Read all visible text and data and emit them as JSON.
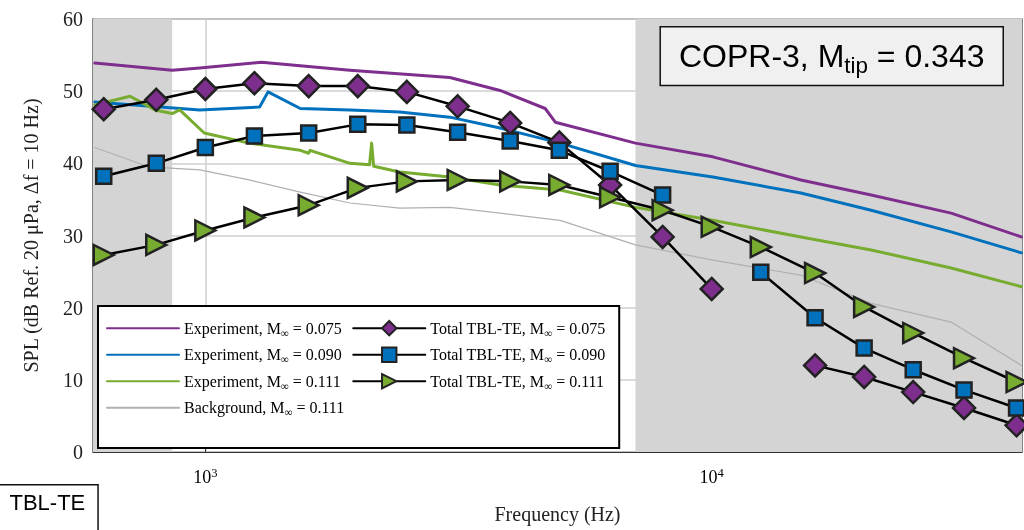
{
  "chart_data": {
    "type": "line",
    "xlabel": "Frequency (Hz)",
    "ylabel": "SPL (dB Ref. 20 μPa, Δf = 10 Hz)",
    "log": "x",
    "xlim": [
      600,
      41000
    ],
    "xticks": [
      {
        "value": 1000,
        "label": "10$^{3}$"
      },
      {
        "value": 10000,
        "label": "10$^{4}$"
      }
    ],
    "ylim": [
      0,
      60
    ],
    "yticks": [
      0,
      10,
      20,
      30,
      40,
      50,
      60
    ],
    "grid": true,
    "legend": "bottom left",
    "annotations": [
      {
        "text": "COPR-3, M$_{tip}$ = 0.343"
      },
      {
        "text": "TBL-TE"
      }
    ],
    "bands": [
      {
        "axis": "x",
        "from": 600,
        "to": 860,
        "color": "#d4d4d4"
      },
      {
        "axis": "x",
        "from": 7070,
        "to": 41000,
        "color": "#d4d4d4"
      }
    ],
    "series": [
      {
        "name": "Experiment, M$_{∞}$ = 0.075",
        "color": "#7e2f8e",
        "marker": "none",
        "x": [
          605,
          860,
          975,
          1290,
          1930,
          3040,
          3820,
          4690,
          4910,
          7070,
          10050,
          15000,
          20650,
          29700,
          40900
        ],
        "values": [
          53.9,
          52.9,
          53.2,
          54.0,
          52.9,
          51.9,
          50.1,
          47.6,
          45.7,
          42.8,
          40.9,
          37.7,
          35.6,
          33.1,
          29.8
        ]
      },
      {
        "name": "Experiment, M$_{∞}$ = 0.090",
        "color": "#0072bd",
        "marker": "none",
        "x": [
          605,
          975,
          1280,
          1330,
          1540,
          1930,
          2420,
          3040,
          3820,
          5020,
          7070,
          10050,
          15000,
          20650,
          29700,
          40900
        ],
        "values": [
          48.5,
          47.4,
          47.8,
          49.9,
          47.6,
          47.4,
          47.1,
          46.4,
          44.9,
          42.8,
          39.7,
          38.1,
          35.9,
          33.5,
          30.5,
          27.6
        ]
      },
      {
        "name": "Experiment, M$_{∞}$ = 0.111",
        "color": "#77ac30",
        "marker": "none",
        "x": [
          605,
          710,
          795,
          860,
          890,
          995,
          1220,
          1540,
          1600,
          1610,
          1930,
          2110,
          2130,
          2150,
          2420,
          3040,
          3820,
          5020,
          7070,
          10050,
          15000,
          20650,
          29700,
          40900
        ],
        "values": [
          48.1,
          49.3,
          47.4,
          46.9,
          47.4,
          44.2,
          42.8,
          41.8,
          41.4,
          41.8,
          40.0,
          39.8,
          42.8,
          39.6,
          38.8,
          38.1,
          37.0,
          36.3,
          33.9,
          32.1,
          29.8,
          28.0,
          25.5,
          22.9
        ]
      },
      {
        "name": "Background, M$_{∞}$ = 0.111",
        "color": "#b0b0b0",
        "marker": "none",
        "x": [
          605,
          775,
          975,
          1220,
          1540,
          1930,
          2420,
          3040,
          3820,
          5020,
          7070,
          10050,
          15000,
          20650,
          29700,
          40900
        ],
        "values": [
          42.2,
          39.5,
          39.1,
          37.7,
          36.0,
          34.5,
          33.8,
          33.9,
          33.1,
          32.1,
          28.7,
          26.6,
          24.5,
          20.6,
          18.0,
          12.0
        ]
      },
      {
        "name": "Total TBL-TE, M$_{∞}$ = 0.075",
        "color": "#7e2f8e",
        "marker": "diamond",
        "x": [
          630,
          800,
          1000,
          1250,
          1600,
          2000,
          2500,
          3150,
          4000,
          5000,
          6300,
          8000,
          10000,
          12500,
          16000,
          20000,
          25000,
          31500,
          40000
        ],
        "values": [
          47.5,
          48.8,
          50.3,
          51.1,
          50.7,
          50.7,
          49.9,
          47.9,
          45.6,
          42.9,
          37.0,
          29.8,
          22.6,
          null,
          12.0,
          10.4,
          8.3,
          6.1,
          3.7
        ]
      },
      {
        "name": "Total TBL-TE, M$_{∞}$ = 0.090",
        "color": "#0072bd",
        "marker": "square",
        "x": [
          630,
          800,
          1000,
          1250,
          1600,
          2000,
          2500,
          3150,
          4000,
          5000,
          6300,
          8000,
          10000,
          12500,
          16000,
          20000,
          25000,
          31500,
          40000
        ],
        "values": [
          38.2,
          40.0,
          42.2,
          43.8,
          44.2,
          45.4,
          45.3,
          44.3,
          43.1,
          41.8,
          38.9,
          35.6,
          null,
          24.9,
          18.6,
          14.4,
          11.4,
          8.6,
          6.1
        ]
      },
      {
        "name": "Total TBL-TE, M$_{∞}$ = 0.111",
        "color": "#77ac30",
        "marker": "triangle",
        "x": [
          630,
          800,
          1000,
          1250,
          1600,
          2000,
          2500,
          3150,
          4000,
          5000,
          6300,
          8000,
          10000,
          12500,
          16000,
          20000,
          25000,
          31500,
          40000
        ],
        "values": [
          27.3,
          28.7,
          30.7,
          32.5,
          34.2,
          36.6,
          37.5,
          37.7,
          37.5,
          37.0,
          35.3,
          33.5,
          31.2,
          28.4,
          24.8,
          20.1,
          16.5,
          13.0,
          9.7
        ]
      }
    ]
  }
}
